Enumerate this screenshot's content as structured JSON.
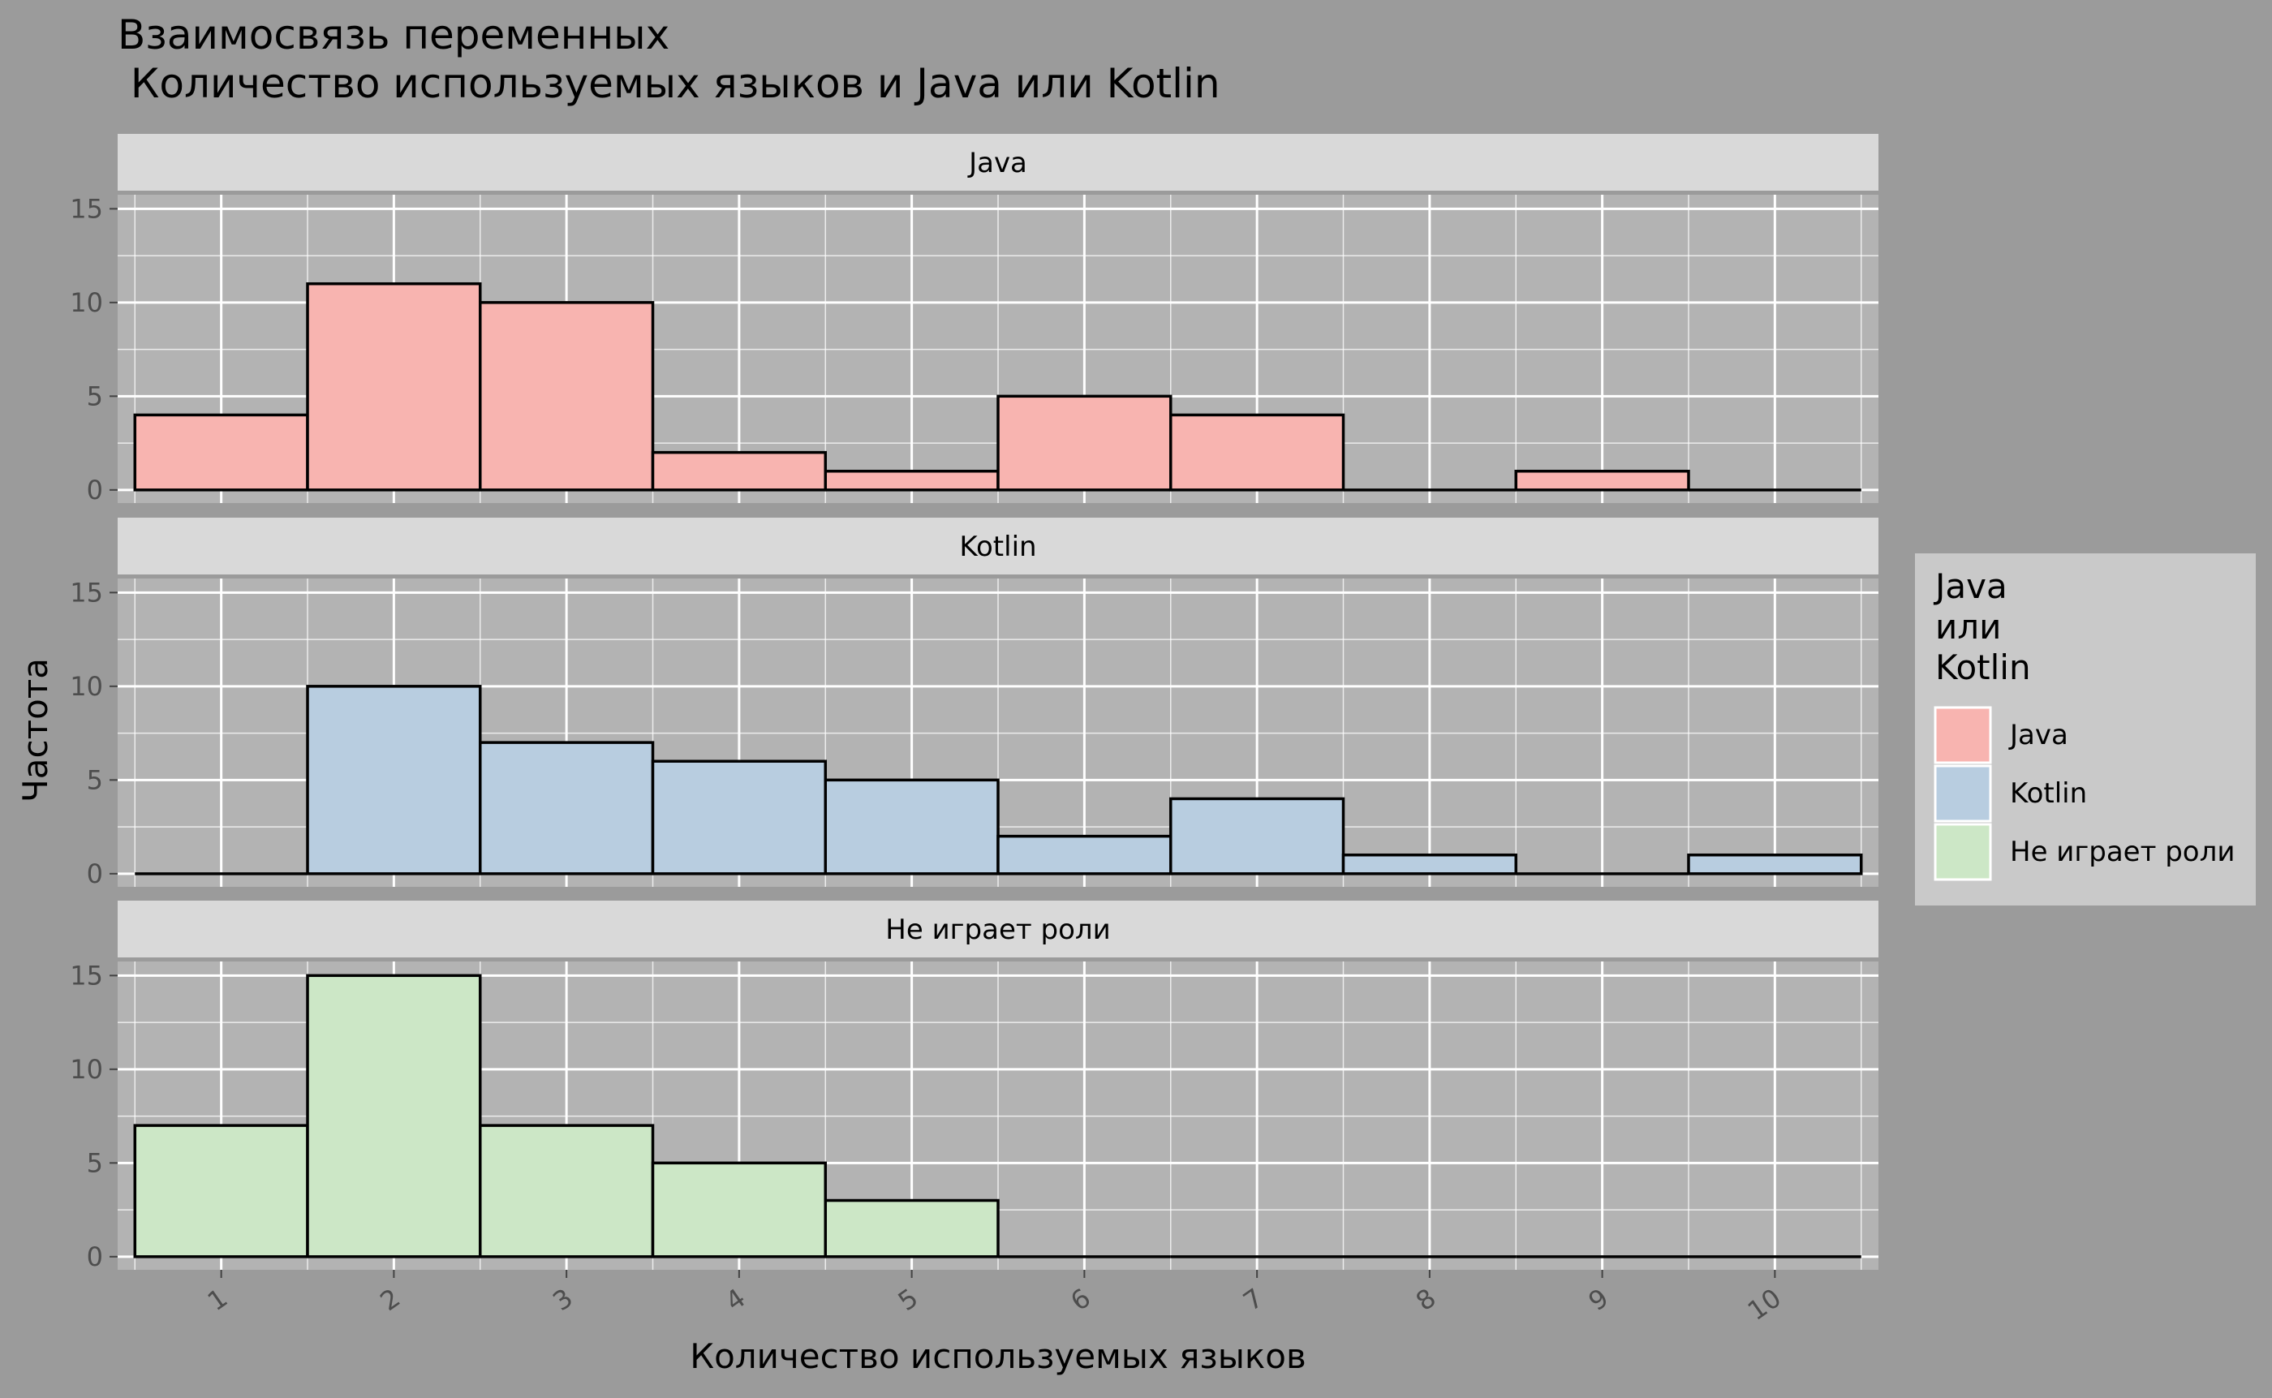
{
  "chart_data": {
    "type": "bar",
    "title": "Взаимосвязь переменных\n Количество используемых языков и Java или Kotlin",
    "xlabel": "Количество используемых языков",
    "ylabel": "Частота",
    "x": [
      1,
      2,
      3,
      4,
      5,
      6,
      7,
      8,
      9,
      10
    ],
    "xtick_labels": [
      "1",
      "2",
      "3",
      "4",
      "5",
      "6",
      "7",
      "8",
      "9",
      "10"
    ],
    "ylim": [
      0,
      15
    ],
    "yticks": [
      0,
      5,
      10,
      15
    ],
    "ytick_labels": [
      "0",
      "5",
      "10",
      "15"
    ],
    "panels": [
      {
        "name": "Java",
        "color": "#f8b4b0",
        "values": [
          4,
          11,
          10,
          2,
          1,
          5,
          4,
          0,
          1,
          0
        ]
      },
      {
        "name": "Kotlin",
        "color": "#b8cde0",
        "values": [
          0,
          10,
          7,
          6,
          5,
          2,
          4,
          1,
          0,
          1
        ]
      },
      {
        "name": "Не играет роли",
        "color": "#cce7c6",
        "values": [
          7,
          15,
          7,
          5,
          3,
          0,
          0,
          0,
          0,
          0
        ]
      }
    ],
    "legend": {
      "title": "Java\nили\nKotlin",
      "placement": "right",
      "entries": [
        "Java",
        "Kotlin",
        "Не играет роли"
      ]
    },
    "grid": true
  }
}
